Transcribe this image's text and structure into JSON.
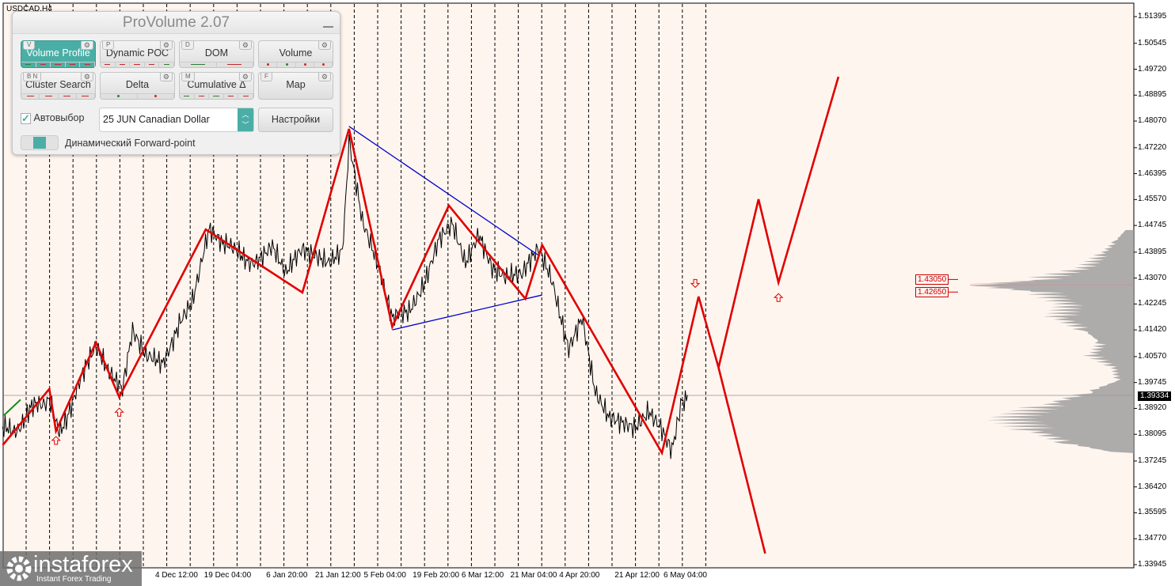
{
  "chart_title": "USDCAD,H4",
  "panel": {
    "title": "ProVolume 2.07",
    "buttons": [
      {
        "label": "Volume Profile",
        "key": "V",
        "active": true,
        "marks": [
          "#2e7d32",
          "#c62828",
          "#c62828",
          "#c62828",
          "#c62828"
        ],
        "dots": false
      },
      {
        "label": "Dynamic POC",
        "key": "P",
        "marks": [
          "#c62828",
          "#c62828",
          "#c62828",
          "#c62828",
          "#2e7d32"
        ],
        "dots": false
      },
      {
        "label": "DOM",
        "key": "D",
        "marks": [
          "#2e7d32",
          "#c62828"
        ],
        "dots": false
      },
      {
        "label": "Volume",
        "key": "",
        "marks": [
          "#c62828",
          "#2e7d32",
          "#c62828",
          "#c62828"
        ],
        "dots": true
      },
      {
        "label": "Cluster Search",
        "key": "B N",
        "marks": [
          "#c62828",
          "#c62828",
          "#c62828",
          "#c62828"
        ],
        "dots": false
      },
      {
        "label": "Delta",
        "key": "",
        "marks": [
          "#2e7d32",
          "#c62828"
        ],
        "dots": true
      },
      {
        "label": "Cumulative Δ",
        "key": "M",
        "marks": [
          "#2e7d32",
          "#c62828",
          "#2e7d32",
          "#c62828",
          "#c62828"
        ],
        "dots": false
      },
      {
        "label": "Map",
        "key": "F",
        "marks": [],
        "dots": false
      }
    ],
    "autoselect_label": "Автовыбор",
    "autoselect_checked": true,
    "instrument": "25 JUN Canadian Dollar",
    "settings_label": "Настройки",
    "forward_label": "Динамический Forward-point"
  },
  "accent": "#4aaea6",
  "chart_data": {
    "type": "line",
    "ylim": [
      1.33945,
      1.51395
    ],
    "y_ticks": [
      "1.51395",
      "1.50545",
      "1.49720",
      "1.48895",
      "1.48070",
      "1.47220",
      "1.46395",
      "1.45570",
      "1.44745",
      "1.43895",
      "1.43070",
      "1.42245",
      "1.41420",
      "1.40570",
      "1.39745",
      "1.38920",
      "1.38095",
      "1.37245",
      "1.36420",
      "1.35595",
      "1.34770",
      "1.33945"
    ],
    "x_ticks": [
      {
        "t": "2024-12-04T12:00",
        "label": "4 Dec 12:00"
      },
      {
        "t": "2024-12-19T04:00",
        "label": "19 Dec 04:00"
      },
      {
        "t": "2025-01-06T20:00",
        "label": "6 Jan 20:00"
      },
      {
        "t": "2025-01-21T12:00",
        "label": "21 Jan 12:00"
      },
      {
        "t": "2025-02-05T04:00",
        "label": "5 Feb 04:00"
      },
      {
        "t": "2025-02-19T20:00",
        "label": "19 Feb 20:00"
      },
      {
        "t": "2025-03-06T12:00",
        "label": "6 Mar 12:00"
      },
      {
        "t": "2025-03-21T04:00",
        "label": "21 Mar 04:00"
      },
      {
        "t": "2025-04-04T20:00",
        "label": "4 Apr 20:00"
      },
      {
        "t": "2025-04-21T12:00",
        "label": "21 Apr 12:00"
      },
      {
        "t": "2025-05-06T04:00",
        "label": "6 May 04:00"
      }
    ],
    "current_price": "1.39334",
    "levels": [
      "1.43050",
      "1.42650"
    ],
    "price": [
      [
        "2024-10-14",
        1.381
      ],
      [
        "2024-10-21",
        1.386
      ],
      [
        "2024-10-28",
        1.394
      ],
      [
        "2024-10-31",
        1.383
      ],
      [
        "2024-11-06",
        1.396
      ],
      [
        "2024-11-11",
        1.408
      ],
      [
        "2024-11-15",
        1.4
      ],
      [
        "2024-11-19",
        1.395
      ],
      [
        "2024-11-22",
        1.412
      ],
      [
        "2024-11-26",
        1.404
      ],
      [
        "2024-12-01",
        1.404
      ],
      [
        "2024-12-06",
        1.418
      ],
      [
        "2024-12-10",
        1.425
      ],
      [
        "2024-12-15",
        1.445
      ],
      [
        "2024-12-19",
        1.44
      ],
      [
        "2024-12-24",
        1.438
      ],
      [
        "2024-12-30",
        1.437
      ],
      [
        "2025-01-03",
        1.441
      ],
      [
        "2025-01-07",
        1.432
      ],
      [
        "2025-01-12",
        1.438
      ],
      [
        "2025-01-16",
        1.436
      ],
      [
        "2025-01-20",
        1.434
      ],
      [
        "2025-01-24",
        1.438
      ],
      [
        "2025-01-26",
        1.476
      ],
      [
        "2025-01-30",
        1.45
      ],
      [
        "2025-02-04",
        1.432
      ],
      [
        "2025-02-08",
        1.416
      ],
      [
        "2025-02-13",
        1.42
      ],
      [
        "2025-02-18",
        1.432
      ],
      [
        "2025-02-22",
        1.445
      ],
      [
        "2025-02-26",
        1.45
      ],
      [
        "2025-03-02",
        1.437
      ],
      [
        "2025-03-06",
        1.446
      ],
      [
        "2025-03-10",
        1.435
      ],
      [
        "2025-03-14",
        1.432
      ],
      [
        "2025-03-19",
        1.43
      ],
      [
        "2025-03-24",
        1.44
      ],
      [
        "2025-03-28",
        1.43
      ],
      [
        "2025-04-02",
        1.41
      ],
      [
        "2025-04-06",
        1.42
      ],
      [
        "2025-04-10",
        1.396
      ],
      [
        "2025-04-14",
        1.388
      ],
      [
        "2025-04-18",
        1.386
      ],
      [
        "2025-04-22",
        1.384
      ],
      [
        "2025-04-26",
        1.389
      ],
      [
        "2025-04-30",
        1.383
      ],
      [
        "2025-05-03",
        1.378
      ],
      [
        "2025-05-06",
        1.392
      ],
      [
        "2025-05-08",
        1.395
      ]
    ],
    "zigzag": [
      [
        "2024-10-14",
        1.3775
      ],
      [
        "2024-10-28",
        1.3954
      ],
      [
        "2024-10-30",
        1.382
      ],
      [
        "2024-11-11",
        1.4102
      ],
      [
        "2024-11-18",
        1.3928
      ],
      [
        "2024-12-14",
        1.4462
      ],
      [
        "2025-01-12",
        1.4261
      ],
      [
        "2025-01-26",
        1.4782
      ],
      [
        "2025-02-08",
        1.4152
      ],
      [
        "2025-02-25",
        1.4538
      ],
      [
        "2025-03-20",
        1.4241
      ],
      [
        "2025-03-25",
        1.4412
      ],
      [
        "2025-04-30",
        1.375
      ],
      [
        "2025-05-11",
        1.4248
      ],
      [
        "2025-05-17",
        1.4022
      ],
      [
        "2025-05-29",
        1.4558
      ],
      [
        "2025-06-04",
        1.4293
      ],
      [
        "2025-06-22",
        1.4948
      ]
    ],
    "zigzag_branch": [
      [
        "2025-05-17",
        1.4022
      ],
      [
        "2025-05-31",
        1.343
      ]
    ],
    "trendlines": [
      [
        [
          "2025-01-26",
          1.479
        ],
        [
          "2025-03-24",
          1.4379
        ]
      ],
      [
        [
          "2025-02-08",
          1.4142
        ],
        [
          "2025-03-25",
          1.4253
        ]
      ]
    ],
    "arrows": [
      {
        "t": "2024-10-30",
        "p": 1.379,
        "dir": "up"
      },
      {
        "t": "2024-11-18",
        "p": 1.388,
        "dir": "up"
      },
      {
        "t": "2025-06-04",
        "p": 1.4245,
        "dir": "up"
      },
      {
        "t": "2025-05-10",
        "p": 1.429,
        "dir": "down"
      }
    ],
    "volume_profile": [
      [
        1.446,
        0.05
      ],
      [
        1.442,
        0.12
      ],
      [
        1.438,
        0.2
      ],
      [
        1.434,
        0.3
      ],
      [
        1.43,
        0.6
      ],
      [
        1.4285,
        1.0
      ],
      [
        1.426,
        0.55
      ],
      [
        1.422,
        0.4
      ],
      [
        1.418,
        0.45
      ],
      [
        1.414,
        0.3
      ],
      [
        1.41,
        0.2
      ],
      [
        1.406,
        0.25
      ],
      [
        1.402,
        0.12
      ],
      [
        1.398,
        0.1
      ],
      [
        1.394,
        0.3
      ],
      [
        1.39,
        0.55
      ],
      [
        1.386,
        0.75
      ],
      [
        1.382,
        0.6
      ],
      [
        1.378,
        0.4
      ],
      [
        1.375,
        0.1
      ]
    ],
    "colors": {
      "price": "#000000",
      "zigzag": "#e00000",
      "trend": "#0000cc",
      "profile": "#9a9a9a"
    }
  },
  "watermark": {
    "name": "instaforex",
    "tagline": "Instant Forex Trading"
  }
}
